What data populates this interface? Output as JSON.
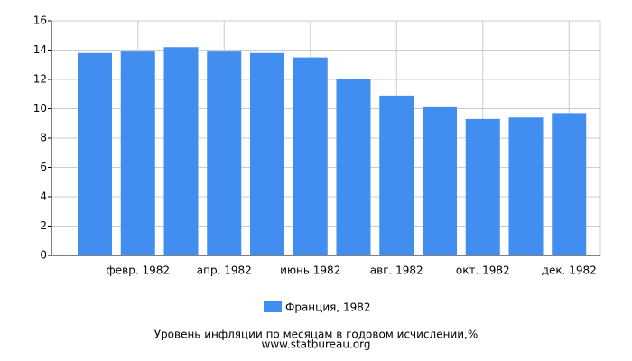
{
  "chart_data": {
    "type": "bar",
    "title": "Уровень инфляции по месяцам в годовом исчислении,%",
    "source": "www.statbureau.org",
    "categories": [
      null,
      "февр. 1982",
      null,
      "апр. 1982",
      null,
      "июнь 1982",
      null,
      "авг. 1982",
      null,
      "окт. 1982",
      null,
      "дек. 1982"
    ],
    "series": [
      {
        "name": "Франция, 1982",
        "color": "#428ef0",
        "values": [
          13.8,
          13.9,
          14.2,
          13.9,
          13.8,
          13.5,
          12.0,
          10.9,
          10.1,
          9.3,
          9.4,
          9.7
        ]
      }
    ],
    "ylim": [
      0,
      16
    ],
    "yticks": [
      0,
      2,
      4,
      6,
      8,
      10,
      12,
      14,
      16
    ],
    "grid": true
  }
}
